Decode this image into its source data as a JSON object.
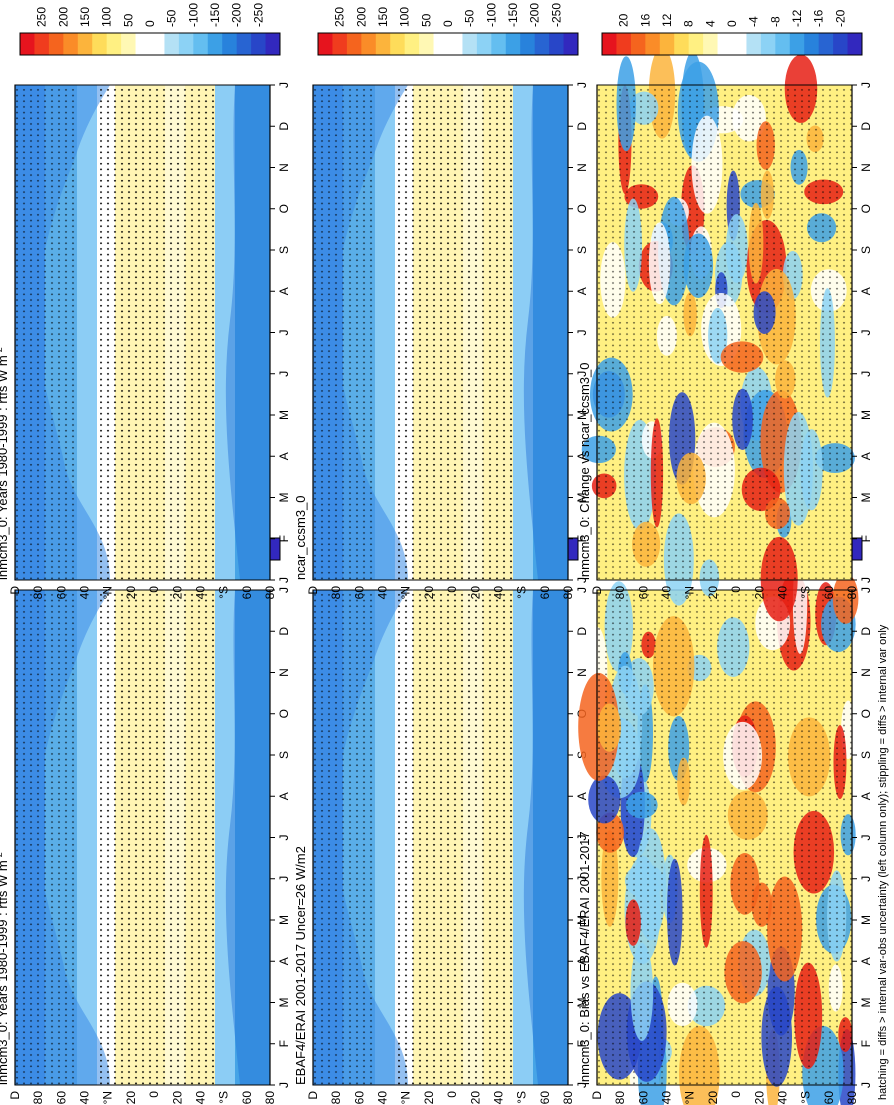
{
  "footer_note": "hatching = diffs > internal var-obs uncertainty (left column only); stippling = diffs > internal var only",
  "months": [
    "J",
    "F",
    "M",
    "A",
    "M",
    "J",
    "J",
    "A",
    "S",
    "O",
    "N",
    "D",
    "J"
  ],
  "lat_labels": [
    "D",
    "80",
    "60",
    "40",
    "°N",
    "20",
    "0",
    "20",
    "40",
    "°S",
    "60",
    "80"
  ],
  "colors": {
    "blue_dark": "#1e3cc8",
    "blue_mid": "#3c8ce6",
    "blue_light": "#8ccdf5",
    "white": "#ffffff",
    "yellow_light": "#fff5b4",
    "yellow": "#ffdc50",
    "orange": "#ff8c28",
    "red": "#e61e14"
  },
  "colorbars": {
    "flux": {
      "labels": [
        "250",
        "200",
        "150",
        "100",
        "50",
        "0",
        "-50",
        "-100",
        "-150",
        "-200",
        "-250"
      ],
      "colors": [
        "#e6141e",
        "#f03c1e",
        "#f5641e",
        "#fa8c28",
        "#fcb43c",
        "#fedc5a",
        "#fff082",
        "#fff8b4",
        "#ffffff",
        "#ffffff",
        "#b4e1f5",
        "#8cd2f5",
        "#64bef0",
        "#3ca0e6",
        "#2882dc",
        "#2864d2",
        "#2846c8",
        "#3228be"
      ]
    },
    "change": {
      "labels": [
        "20",
        "16",
        "12",
        "8",
        "4",
        "0",
        "-4",
        "-8",
        "-12",
        "-16",
        "-20"
      ],
      "colors": [
        "#e6141e",
        "#f03c1e",
        "#f5641e",
        "#fa8c28",
        "#fcb43c",
        "#fedc5a",
        "#fff082",
        "#fff8b4",
        "#ffffff",
        "#ffffff",
        "#b4e1f5",
        "#8cd2f5",
        "#64bef0",
        "#3ca0e6",
        "#2882dc",
        "#2864d2",
        "#2846c8",
        "#3228be"
      ]
    }
  },
  "panels": [
    {
      "id": "p1",
      "title": "inmcm3_0: Years 1980-1999 : rtfs W m",
      "title_sup": "-2",
      "colorbar": "flux"
    },
    {
      "id": "p2",
      "title": "EBAF4/ERAI 2001-2017 Uncer=26 W/m2",
      "title_sup": "",
      "colorbar": "flux"
    },
    {
      "id": "p3",
      "title": "inmcm3_0: Bias vs EBAF4/ERAI 2001-2017",
      "title_sup": "",
      "colorbar": "change"
    },
    {
      "id": "p4",
      "title": "inmcm3_0: Years 1980-1999 : rtfs W m",
      "title_sup": "-2",
      "colorbar": "flux"
    },
    {
      "id": "p5",
      "title": "ncar_ccsm3_0",
      "title_sup": "",
      "colorbar": "flux"
    },
    {
      "id": "p6",
      "title": "inmcm3_0: Change vs ncar_ccsm3_0",
      "title_sup": "",
      "colorbar": "change"
    }
  ],
  "chart_data": [
    {
      "type": "heatmap",
      "title": "inmcm3_0: Years 1980-1999 : rtfs W m-2",
      "x": [
        "J",
        "F",
        "M",
        "A",
        "M",
        "J",
        "J",
        "A",
        "S",
        "O",
        "N",
        "D",
        "J"
      ],
      "y_labels": [
        "80",
        "60",
        "40",
        "°N",
        "20",
        "0",
        "20",
        "40",
        "°S",
        "60",
        "80"
      ],
      "colorbar": [
        "250",
        "200",
        "150",
        "100",
        "50",
        "0",
        "-50",
        "-100",
        "-150",
        "-200",
        "-250"
      ]
    },
    {
      "type": "heatmap",
      "title": "EBAF4/ERAI 2001-2017 Uncer=26 W/m2",
      "x": [
        "J",
        "F",
        "M",
        "A",
        "M",
        "J",
        "J",
        "A",
        "S",
        "O",
        "N",
        "D",
        "J"
      ],
      "y_labels": [
        "80",
        "60",
        "40",
        "°N",
        "20",
        "0",
        "20",
        "40",
        "°S",
        "60",
        "80"
      ],
      "colorbar": [
        "250",
        "200",
        "150",
        "100",
        "50",
        "0",
        "-50",
        "-100",
        "-150",
        "-200",
        "-250"
      ]
    },
    {
      "type": "heatmap",
      "title": "inmcm3_0: Bias vs EBAF4/ERAI 2001-2017",
      "x": [
        "J",
        "F",
        "M",
        "A",
        "M",
        "J",
        "J",
        "A",
        "S",
        "O",
        "N",
        "D",
        "J"
      ],
      "y_labels": [
        "80",
        "60",
        "40",
        "°N",
        "20",
        "0",
        "20",
        "40",
        "°S",
        "60",
        "80"
      ],
      "colorbar": [
        "20",
        "16",
        "12",
        "8",
        "4",
        "0",
        "-4",
        "-8",
        "-12",
        "-16",
        "-20"
      ]
    },
    {
      "type": "heatmap",
      "title": "inmcm3_0: Years 1980-1999 : rtfs W m-2",
      "x": [
        "J",
        "F",
        "M",
        "A",
        "M",
        "J",
        "J",
        "A",
        "S",
        "O",
        "N",
        "D",
        "J"
      ],
      "y_labels": [
        "80",
        "60",
        "40",
        "°N",
        "20",
        "0",
        "20",
        "40",
        "°S",
        "60",
        "80"
      ],
      "colorbar": [
        "250",
        "200",
        "150",
        "100",
        "50",
        "0",
        "-50",
        "-100",
        "-150",
        "-200",
        "-250"
      ]
    },
    {
      "type": "heatmap",
      "title": "ncar_ccsm3_0",
      "x": [
        "J",
        "F",
        "M",
        "A",
        "M",
        "J",
        "J",
        "A",
        "S",
        "O",
        "N",
        "D",
        "J"
      ],
      "y_labels": [
        "80",
        "60",
        "40",
        "°N",
        "20",
        "0",
        "20",
        "40",
        "°S",
        "60",
        "80"
      ],
      "colorbar": [
        "250",
        "200",
        "150",
        "100",
        "50",
        "0",
        "-50",
        "-100",
        "-150",
        "-200",
        "-250"
      ]
    },
    {
      "type": "heatmap",
      "title": "inmcm3_0: Change vs ncar_ccsm3_0",
      "x": [
        "J",
        "F",
        "M",
        "A",
        "M",
        "J",
        "J",
        "A",
        "S",
        "O",
        "N",
        "D",
        "J"
      ],
      "y_labels": [
        "80",
        "60",
        "40",
        "°N",
        "20",
        "0",
        "20",
        "40",
        "°S",
        "60",
        "80"
      ],
      "colorbar": [
        "20",
        "16",
        "12",
        "8",
        "4",
        "0",
        "-4",
        "-8",
        "-12",
        "-16",
        "-20"
      ]
    }
  ]
}
